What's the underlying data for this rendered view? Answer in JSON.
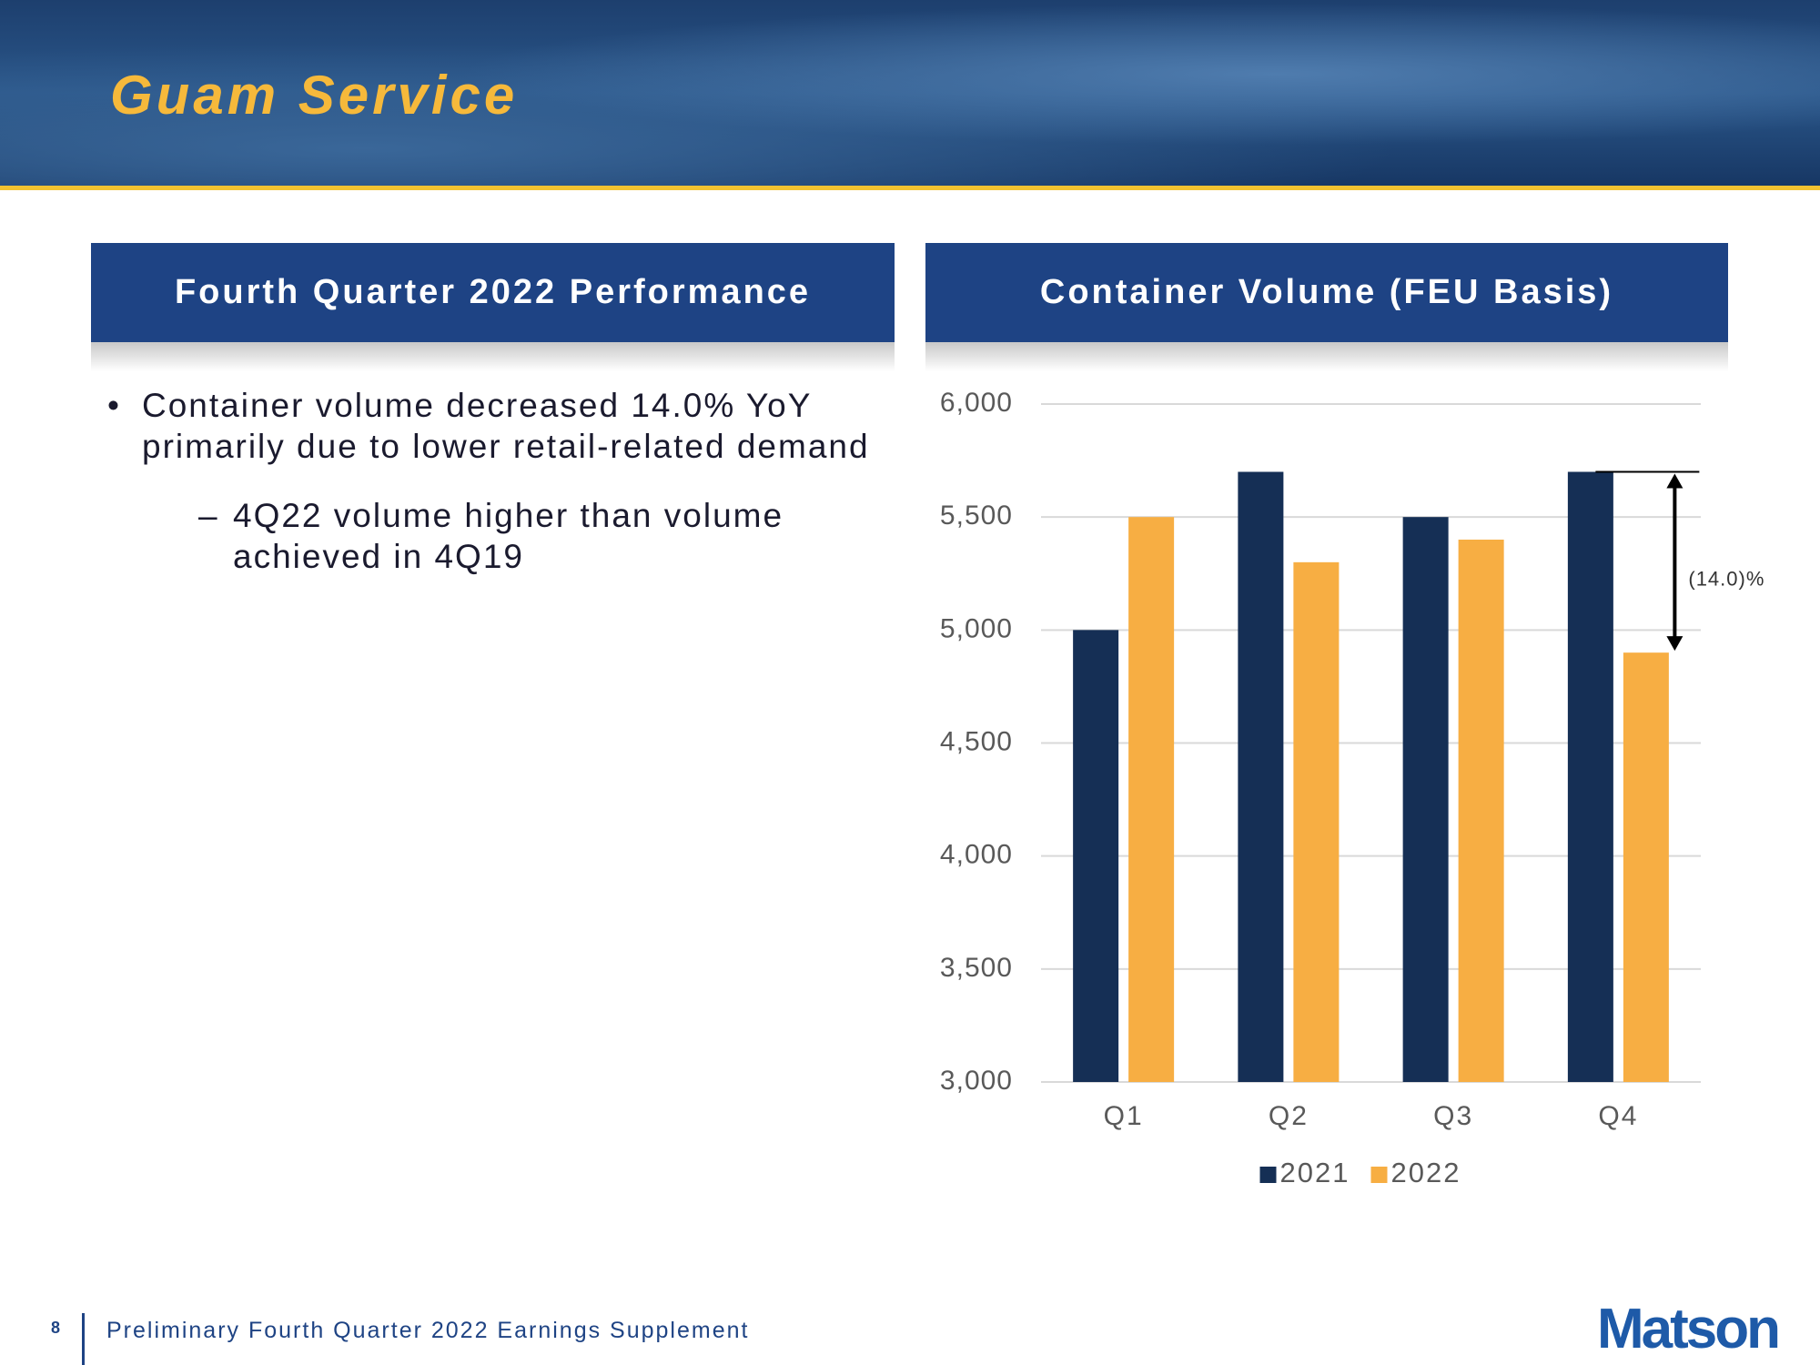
{
  "header": {
    "title": "Guam Service"
  },
  "left_panel": {
    "title": "Fourth Quarter 2022 Performance",
    "bullets": [
      {
        "text": "Container volume decreased 14.0% YoY primarily due to lower retail-related demand",
        "sub": [
          "4Q22 volume higher than volume achieved in 4Q19"
        ]
      }
    ]
  },
  "chart_data": {
    "type": "bar",
    "title": "Container Volume (FEU Basis)",
    "categories": [
      "Q1",
      "Q2",
      "Q3",
      "Q4"
    ],
    "series": [
      {
        "name": "2021",
        "color": "#152f55",
        "values": [
          5000,
          5700,
          5500,
          5700
        ]
      },
      {
        "name": "2022",
        "color": "#f7ae43",
        "values": [
          5500,
          5300,
          5400,
          4900
        ]
      }
    ],
    "ylim": [
      3000,
      6000
    ],
    "yticks": [
      {
        "value": 3000,
        "label": "3,000"
      },
      {
        "value": 3500,
        "label": "3,500"
      },
      {
        "value": 4000,
        "label": "4,000"
      },
      {
        "value": 4500,
        "label": "4,500"
      },
      {
        "value": 5000,
        "label": "5,000"
      },
      {
        "value": 5500,
        "label": "5,500"
      },
      {
        "value": 6000,
        "label": "6,000"
      }
    ],
    "grid": true,
    "legend": "bottom",
    "annotation": "(14.0)%"
  },
  "footer": {
    "page_number": "8",
    "text": "Preliminary Fourth Quarter 2022 Earnings Supplement",
    "logo": "Matson"
  }
}
